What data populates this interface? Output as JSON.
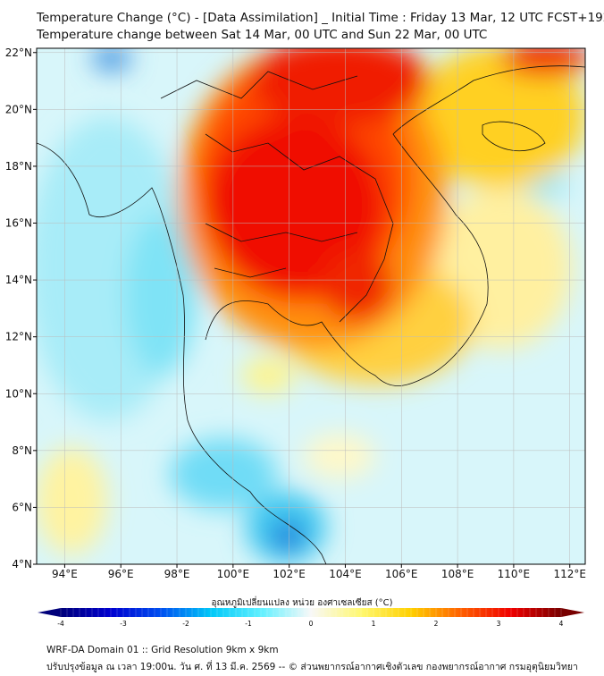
{
  "title": {
    "line1": "Temperature Change (°C) - [Data Assimilation] _ Initial Time : Friday 13 Mar, 12 UTC FCST+192",
    "line2": "Temperature change between Sat 14 Mar, 00 UTC and Sun 22 Mar, 00 UTC"
  },
  "map": {
    "lon_range": [
      93.0,
      112.55
    ],
    "lat_range": [
      4.0,
      22.15
    ],
    "lon_ticks": [
      "94°E",
      "96°E",
      "98°E",
      "100°E",
      "102°E",
      "104°E",
      "106°E",
      "108°E",
      "110°E",
      "112°E"
    ],
    "lon_values": [
      94,
      96,
      98,
      100,
      102,
      104,
      106,
      108,
      110,
      112
    ],
    "lat_ticks": [
      "4°N",
      "6°N",
      "8°N",
      "10°N",
      "12°N",
      "14°N",
      "16°N",
      "18°N",
      "20°N",
      "22°N"
    ],
    "lat_values": [
      4,
      6,
      8,
      10,
      12,
      14,
      16,
      18,
      20,
      22
    ]
  },
  "colorbar": {
    "title": "อุณหภูมิเปลี่ยนแปลง หน่วย องศาเซลเซียส (°C)",
    "range": [
      -4,
      4
    ],
    "ticks": [
      "-4",
      "-3",
      "-2",
      "-1",
      "0",
      "1",
      "2",
      "3",
      "4"
    ],
    "tick_values": [
      -4,
      -3,
      -2,
      -1,
      0,
      1,
      2,
      3,
      4
    ],
    "colors": [
      "#00007a",
      "#0000d0",
      "#0050f0",
      "#00c8f8",
      "#60f0ff",
      "#f8f8f8",
      "#fff870",
      "#ffd000",
      "#ff6000",
      "#f00000",
      "#780000"
    ]
  },
  "footer": {
    "line1": "WRF-DA Domain 01 :: Grid Resolution 9km x 9km",
    "line2": "ปรับปรุงข้อมูล ณ เวลา 19:00น. วัน ศ. ที่ 13 มี.ค. 2569 -- © ส่วนพยากรณ์อากาศเชิงตัวเลข กองพยากรณ์อากาศ กรมอุตุนิยมวิทยา"
  }
}
